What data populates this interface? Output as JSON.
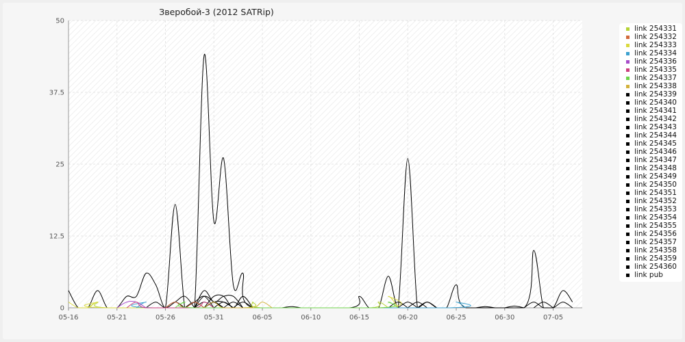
{
  "chart_data": {
    "type": "line",
    "title": "Зверобой-3 (2012 SATRip)",
    "xlabel": "",
    "ylabel": "",
    "ylim": [
      0,
      50
    ],
    "yticks": [
      0,
      12.5,
      25,
      37.5,
      50
    ],
    "ytick_labels": [
      "0",
      "12.5",
      "25",
      "37.5",
      "50"
    ],
    "xlim": [
      "2012-05-16",
      "2012-07-08"
    ],
    "xticks": [
      "2012-05-16",
      "2012-05-21",
      "2012-05-26",
      "2012-05-31",
      "2012-06-05",
      "2012-06-10",
      "2012-06-15",
      "2012-06-20",
      "2012-06-25",
      "2012-06-30",
      "2012-07-05"
    ],
    "xtick_labels": [
      "05-16",
      "05-21",
      "05-26",
      "05-31",
      "06-05",
      "06-10",
      "06-15",
      "06-20",
      "06-25",
      "06-30",
      "07-05"
    ],
    "grid": true,
    "legend_position": "right",
    "series": [
      {
        "name": "link 254331",
        "color": "#b5d334",
        "points": [
          [
            "2012-05-18",
            0
          ],
          [
            "2012-05-19",
            1
          ],
          [
            "2012-05-20",
            0
          ],
          [
            "2012-06-03",
            0
          ],
          [
            "2012-06-04",
            1
          ],
          [
            "2012-06-05",
            0
          ],
          [
            "2012-06-16",
            0
          ],
          [
            "2012-06-17",
            1
          ],
          [
            "2012-06-18",
            0
          ]
        ]
      },
      {
        "name": "link 254332",
        "color": "#d2693b",
        "points": [
          [
            "2012-05-26",
            0
          ],
          [
            "2012-05-27",
            1
          ],
          [
            "2012-05-28",
            0
          ],
          [
            "2012-05-29",
            1
          ],
          [
            "2012-05-30",
            0
          ]
        ]
      },
      {
        "name": "link 254333",
        "color": "#dada3e",
        "points": [
          [
            "2012-05-16",
            1
          ],
          [
            "2012-05-17",
            0
          ],
          [
            "2012-05-18",
            0
          ],
          [
            "2012-05-19",
            1
          ],
          [
            "2012-05-20",
            0
          ],
          [
            "2012-06-17",
            0
          ],
          [
            "2012-06-18",
            2
          ],
          [
            "2012-06-19",
            0
          ]
        ]
      },
      {
        "name": "link 254334",
        "color": "#3ca1cf",
        "points": [
          [
            "2012-05-23",
            0
          ],
          [
            "2012-05-24",
            1
          ],
          [
            "2012-05-25",
            0
          ],
          [
            "2012-06-24",
            0
          ],
          [
            "2012-06-25",
            1
          ],
          [
            "2012-06-26",
            0
          ]
        ]
      },
      {
        "name": "link 254336",
        "color": "#a64cc9",
        "points": [
          [
            "2012-05-21",
            0
          ],
          [
            "2012-05-22",
            1
          ],
          [
            "2012-05-23",
            1
          ],
          [
            "2012-05-24",
            0
          ]
        ]
      },
      {
        "name": "link 254335",
        "color": "#cc3f7e",
        "points": [
          [
            "2012-05-22",
            0
          ],
          [
            "2012-05-23",
            1
          ],
          [
            "2012-05-24",
            0
          ],
          [
            "2012-05-29",
            0
          ],
          [
            "2012-05-30",
            1
          ],
          [
            "2012-05-31",
            0
          ]
        ]
      },
      {
        "name": "link 254337",
        "color": "#6ed44a",
        "points": [
          [
            "2012-05-27",
            0
          ],
          [
            "2012-05-28",
            1
          ],
          [
            "2012-05-29",
            0
          ],
          [
            "2012-06-17",
            0
          ],
          [
            "2012-06-18",
            1
          ],
          [
            "2012-06-19",
            0
          ]
        ]
      },
      {
        "name": "link 254338",
        "color": "#d3b23c",
        "points": [
          [
            "2012-05-30",
            0
          ],
          [
            "2012-05-31",
            1
          ],
          [
            "2012-06-01",
            0
          ],
          [
            "2012-06-04",
            0
          ],
          [
            "2012-06-05",
            1
          ],
          [
            "2012-06-06",
            0
          ]
        ]
      },
      {
        "name": "link 254339",
        "color": "#000000",
        "points": [
          [
            "2012-05-16",
            3
          ],
          [
            "2012-05-17",
            0
          ],
          [
            "2012-05-18",
            0
          ],
          [
            "2012-05-19",
            3
          ],
          [
            "2012-05-20",
            0
          ],
          [
            "2012-05-21",
            0
          ],
          [
            "2012-05-22",
            2
          ],
          [
            "2012-05-23",
            2
          ],
          [
            "2012-05-24",
            6
          ],
          [
            "2012-05-25",
            4
          ],
          [
            "2012-05-26",
            0
          ],
          [
            "2012-05-27",
            18
          ],
          [
            "2012-05-28",
            0
          ],
          [
            "2012-05-29",
            0
          ],
          [
            "2012-05-30",
            44
          ],
          [
            "2012-05-31",
            15
          ],
          [
            "2012-06-01",
            26
          ],
          [
            "2012-06-02",
            4
          ],
          [
            "2012-06-03",
            6
          ],
          [
            "2012-06-04",
            0
          ],
          [
            "2012-06-14",
            0
          ],
          [
            "2012-06-15",
            2
          ],
          [
            "2012-06-16",
            0
          ],
          [
            "2012-06-17",
            0
          ],
          [
            "2012-06-18",
            5.5
          ],
          [
            "2012-06-19",
            0
          ],
          [
            "2012-06-20",
            26
          ],
          [
            "2012-06-21",
            0
          ],
          [
            "2012-06-22",
            1
          ],
          [
            "2012-06-23",
            0
          ],
          [
            "2012-06-24",
            0
          ],
          [
            "2012-06-25",
            4
          ],
          [
            "2012-06-26",
            0
          ],
          [
            "2012-07-02",
            0
          ],
          [
            "2012-07-03",
            10
          ],
          [
            "2012-07-04",
            0
          ],
          [
            "2012-07-05",
            0
          ],
          [
            "2012-07-06",
            3
          ],
          [
            "2012-07-07",
            1
          ]
        ]
      },
      {
        "name": "link 254340",
        "color": "#000000",
        "points": [
          [
            "2012-05-24",
            0
          ],
          [
            "2012-05-25",
            1
          ],
          [
            "2012-05-26",
            0
          ],
          [
            "2012-05-27",
            1
          ],
          [
            "2012-05-28",
            2
          ],
          [
            "2012-05-29",
            0
          ]
        ]
      },
      {
        "name": "link 254341",
        "color": "#000000",
        "points": [
          [
            "2012-05-29",
            0
          ],
          [
            "2012-05-30",
            3
          ],
          [
            "2012-05-31",
            1
          ],
          [
            "2012-06-01",
            2
          ],
          [
            "2012-06-02",
            2
          ],
          [
            "2012-06-03",
            0
          ]
        ]
      },
      {
        "name": "link 254342",
        "color": "#000000",
        "points": [
          [
            "2012-05-29",
            0
          ],
          [
            "2012-05-30",
            2
          ],
          [
            "2012-05-31",
            1
          ],
          [
            "2012-06-01",
            0
          ]
        ]
      },
      {
        "name": "link 254343",
        "color": "#000000",
        "points": [
          [
            "2012-05-30",
            0
          ],
          [
            "2012-05-31",
            2
          ],
          [
            "2012-06-01",
            2
          ],
          [
            "2012-06-02",
            0
          ],
          [
            "2012-06-03",
            2
          ],
          [
            "2012-06-04",
            0
          ]
        ]
      },
      {
        "name": "link 254344",
        "color": "#000000",
        "points": [
          [
            "2012-05-28",
            0
          ],
          [
            "2012-05-29",
            1
          ],
          [
            "2012-05-30",
            2
          ],
          [
            "2012-05-31",
            0
          ]
        ]
      },
      {
        "name": "link 254345",
        "color": "#000000",
        "points": [
          [
            "2012-05-30",
            0
          ],
          [
            "2012-05-31",
            1
          ],
          [
            "2012-06-01",
            1
          ],
          [
            "2012-06-02",
            0
          ]
        ]
      },
      {
        "name": "link 254346",
        "color": "#000000",
        "points": [
          [
            "2012-06-01",
            0
          ],
          [
            "2012-06-02",
            1
          ],
          [
            "2012-06-03",
            0
          ]
        ]
      },
      {
        "name": "link 254347",
        "color": "#000000",
        "points": [
          [
            "2012-06-19",
            0
          ],
          [
            "2012-06-20",
            1
          ],
          [
            "2012-06-21",
            0
          ]
        ]
      },
      {
        "name": "link 254348",
        "color": "#000000",
        "points": [
          [
            "2012-06-20",
            0
          ],
          [
            "2012-06-21",
            1
          ],
          [
            "2012-06-22",
            0
          ]
        ]
      },
      {
        "name": "link 254349",
        "color": "#000000",
        "points": [
          [
            "2012-07-02",
            0
          ],
          [
            "2012-07-03",
            1
          ],
          [
            "2012-07-04",
            0
          ],
          [
            "2012-07-05",
            0
          ],
          [
            "2012-07-06",
            1
          ],
          [
            "2012-07-07",
            0
          ]
        ]
      },
      {
        "name": "link 254350",
        "color": "#000000",
        "points": [
          [
            "2012-05-29",
            0
          ],
          [
            "2012-05-30",
            1
          ],
          [
            "2012-05-31",
            0
          ]
        ]
      },
      {
        "name": "link 254351",
        "color": "#000000",
        "points": [
          [
            "2012-05-31",
            0
          ],
          [
            "2012-06-01",
            1
          ],
          [
            "2012-06-02",
            0
          ]
        ]
      },
      {
        "name": "link 254352",
        "color": "#000000",
        "points": [
          [
            "2012-05-26",
            0
          ],
          [
            "2012-05-27",
            1
          ],
          [
            "2012-05-28",
            0
          ]
        ]
      },
      {
        "name": "link 254353",
        "color": "#000000",
        "points": [
          [
            "2012-06-02",
            0
          ],
          [
            "2012-06-03",
            1
          ],
          [
            "2012-06-04",
            0
          ]
        ]
      },
      {
        "name": "link 254354",
        "color": "#000000",
        "points": [
          [
            "2012-06-18",
            0
          ],
          [
            "2012-06-19",
            1
          ],
          [
            "2012-06-20",
            0
          ]
        ]
      },
      {
        "name": "link 254355",
        "color": "#000000",
        "points": [
          [
            "2012-07-03",
            0
          ],
          [
            "2012-07-04",
            1
          ],
          [
            "2012-07-05",
            0
          ]
        ]
      },
      {
        "name": "link 254356",
        "color": "#000000",
        "points": [
          [
            "2012-05-30",
            0
          ],
          [
            "2012-05-31",
            1
          ],
          [
            "2012-06-01",
            0
          ]
        ]
      },
      {
        "name": "link 254357",
        "color": "#000000",
        "points": [
          [
            "2012-05-28",
            0
          ],
          [
            "2012-05-29",
            1
          ],
          [
            "2012-05-30",
            0
          ]
        ]
      },
      {
        "name": "link 254358",
        "color": "#000000",
        "points": [
          [
            "2012-06-21",
            0
          ],
          [
            "2012-06-22",
            1
          ],
          [
            "2012-06-23",
            0
          ]
        ]
      },
      {
        "name": "link 254359",
        "color": "#000000",
        "points": [
          [
            "2012-06-30",
            0
          ],
          [
            "2012-07-01",
            0.3
          ],
          [
            "2012-07-02",
            0
          ]
        ]
      },
      {
        "name": "link 254360",
        "color": "#000000",
        "points": [
          [
            "2012-06-27",
            0
          ],
          [
            "2012-06-28",
            0.2
          ],
          [
            "2012-06-29",
            0
          ]
        ]
      },
      {
        "name": "link pub",
        "color": "#000000",
        "points": [
          [
            "2012-06-07",
            0
          ],
          [
            "2012-06-08",
            0.2
          ],
          [
            "2012-06-09",
            0
          ]
        ]
      }
    ]
  }
}
